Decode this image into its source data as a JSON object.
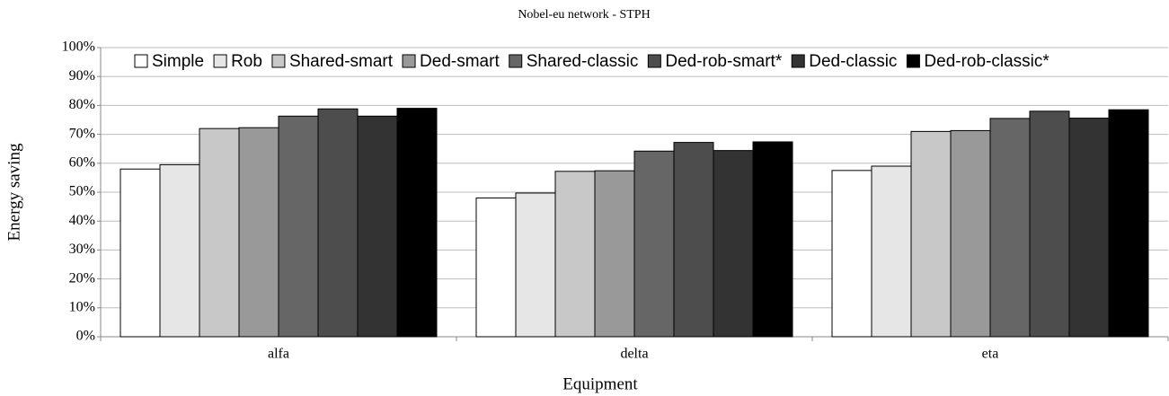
{
  "chart_data": {
    "type": "bar",
    "title": "Nobel-eu network - STPH",
    "x_label": "Equipment",
    "y_label": "Energy saving",
    "categories": [
      "alfa",
      "delta",
      "eta"
    ],
    "series": [
      {
        "name": "Simple",
        "color": "#ffffff",
        "values": [
          58,
          48,
          57.5
        ]
      },
      {
        "name": "Rob",
        "color": "#e6e6e6",
        "values": [
          59.5,
          49.7,
          59
        ]
      },
      {
        "name": "Shared-smart",
        "color": "#c8c8c8",
        "values": [
          72,
          57.2,
          71
        ]
      },
      {
        "name": "Ded-smart",
        "color": "#999999",
        "values": [
          72.3,
          57.4,
          71.3
        ]
      },
      {
        "name": "Shared-classic",
        "color": "#666666",
        "values": [
          76.3,
          64.2,
          75.5
        ]
      },
      {
        "name": "Ded-rob-smart*",
        "color": "#4d4d4d",
        "values": [
          78.8,
          67.2,
          78
        ]
      },
      {
        "name": "Ded-classic",
        "color": "#333333",
        "values": [
          76.3,
          64.4,
          75.6
        ]
      },
      {
        "name": "Ded-rob-classic*",
        "color": "#000000",
        "values": [
          79,
          67.4,
          78.5
        ]
      }
    ],
    "ylim": [
      0,
      100
    ],
    "yticks": [
      {
        "value": 0,
        "label": "0%"
      },
      {
        "value": 10,
        "label": "10%"
      },
      {
        "value": 20,
        "label": "20%"
      },
      {
        "value": 30,
        "label": "30%"
      },
      {
        "value": 40,
        "label": "40%"
      },
      {
        "value": 50,
        "label": "50%"
      },
      {
        "value": 60,
        "label": "60%"
      },
      {
        "value": 70,
        "label": "70%"
      },
      {
        "value": 80,
        "label": "80%"
      },
      {
        "value": 90,
        "label": "90%"
      },
      {
        "value": 100,
        "label": "100%"
      }
    ],
    "grid": true,
    "legend": "top"
  }
}
